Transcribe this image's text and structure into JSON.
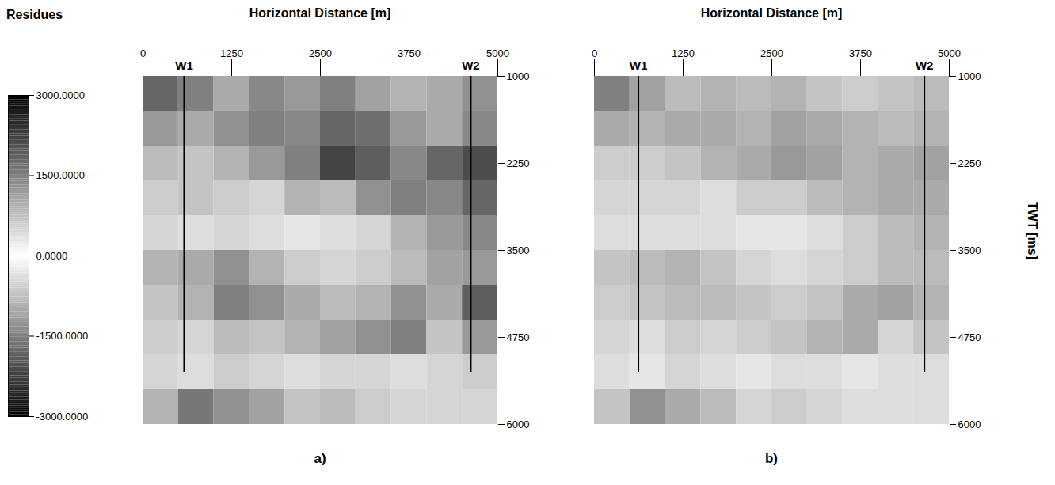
{
  "chart_data": {
    "type": "heatmap",
    "y_label": "TWT [ms]",
    "colorbar": {
      "title": "Residues",
      "values": [
        -3000,
        0,
        3000
      ],
      "colors": [
        "#000000",
        "#ffffff",
        "#000000"
      ],
      "ticks": [
        {
          "value": 3000,
          "label": "3000.0000"
        },
        {
          "value": 1500,
          "label": "1500.0000"
        },
        {
          "value": 0,
          "label": "0.0000"
        },
        {
          "value": -1500,
          "label": "-1500.0000"
        },
        {
          "value": -3000,
          "label": "-3000.0000"
        }
      ]
    },
    "panels": [
      {
        "label": "a)",
        "title": "Horizontal Distance [m]",
        "xlim": [
          0,
          5000
        ],
        "xticks": [
          0,
          1250,
          2500,
          3750,
          5000
        ],
        "ylim": [
          1000,
          6000
        ],
        "yticks": [
          1000,
          2250,
          3500,
          4750,
          6000
        ],
        "wells": [
          {
            "name": "W1",
            "x": 580,
            "y": [
              1000,
              5250
            ]
          },
          {
            "name": "W2",
            "x": 4620,
            "y": [
              1000,
              5250
            ]
          }
        ],
        "x_bins": [
          0,
          500,
          1000,
          1500,
          2000,
          2500,
          3000,
          3500,
          4000,
          4500,
          5000
        ],
        "y_bins": [
          1000,
          1500,
          2000,
          2500,
          3000,
          3500,
          4000,
          4500,
          5000,
          5500,
          6000
        ],
        "values": [
          [
            1800,
            -1500,
            1000,
            -1400,
            1200,
            -1500,
            1100,
            -900,
            1000,
            -1300
          ],
          [
            -1200,
            1000,
            -1300,
            1500,
            -1400,
            1800,
            -1700,
            1200,
            -1000,
            1400
          ],
          [
            800,
            -700,
            900,
            -1200,
            1500,
            -2200,
            1900,
            -1400,
            1800,
            -2100
          ],
          [
            -600,
            700,
            -600,
            500,
            -900,
            800,
            -1300,
            1500,
            -1400,
            1800
          ],
          [
            500,
            -400,
            500,
            -400,
            300,
            -400,
            500,
            -900,
            1200,
            -1400
          ],
          [
            -900,
            1000,
            -1300,
            900,
            -600,
            500,
            -600,
            800,
            -1100,
            1200
          ],
          [
            700,
            -900,
            1500,
            -1300,
            1000,
            -800,
            900,
            -1300,
            1000,
            -1900
          ],
          [
            -600,
            500,
            -800,
            700,
            -900,
            1100,
            -1300,
            1500,
            -700,
            1200
          ],
          [
            500,
            -400,
            600,
            -500,
            400,
            -500,
            500,
            -400,
            500,
            -600
          ],
          [
            -900,
            1600,
            -1300,
            1100,
            -700,
            800,
            -600,
            500,
            -500,
            500
          ]
        ]
      },
      {
        "label": "b)",
        "title": "Horizontal Distance [m]",
        "xlim": [
          0,
          5000
        ],
        "xticks": [
          0,
          1250,
          2500,
          3750,
          5000
        ],
        "ylim": [
          1000,
          6000
        ],
        "yticks": [
          1000,
          2250,
          3500,
          4750,
          6000
        ],
        "wells": [
          {
            "name": "W1",
            "x": 620,
            "y": [
              1000,
              5250
            ]
          },
          {
            "name": "W2",
            "x": 4650,
            "y": [
              1000,
              5250
            ]
          }
        ],
        "x_bins": [
          0,
          500,
          1000,
          1500,
          2000,
          2500,
          3000,
          3500,
          4000,
          4500,
          5000
        ],
        "y_bins": [
          1000,
          1500,
          2000,
          2500,
          3000,
          3500,
          4000,
          4500,
          5000,
          5500,
          6000
        ],
        "values": [
          [
            1500,
            -1100,
            800,
            -900,
            800,
            -900,
            700,
            -600,
            700,
            -800
          ],
          [
            -1000,
            900,
            -1000,
            1000,
            -900,
            1100,
            -1000,
            900,
            -800,
            900
          ],
          [
            600,
            -600,
            700,
            -900,
            1000,
            -1200,
            1100,
            -900,
            1000,
            -1100
          ],
          [
            -500,
            500,
            -500,
            400,
            -600,
            600,
            -800,
            900,
            -1000,
            1000
          ],
          [
            400,
            -400,
            400,
            -400,
            300,
            -300,
            400,
            -600,
            800,
            -900
          ],
          [
            -700,
            800,
            -900,
            700,
            -500,
            400,
            -500,
            600,
            -800,
            800
          ],
          [
            600,
            -700,
            800,
            -800,
            700,
            -600,
            700,
            -1000,
            1100,
            -900
          ],
          [
            -500,
            400,
            -600,
            500,
            -600,
            700,
            -900,
            1000,
            -500,
            700
          ],
          [
            400,
            -300,
            500,
            -400,
            300,
            -400,
            400,
            -300,
            400,
            -400
          ],
          [
            -700,
            1300,
            -1000,
            800,
            -500,
            600,
            -500,
            400,
            -400,
            400
          ]
        ]
      }
    ]
  }
}
